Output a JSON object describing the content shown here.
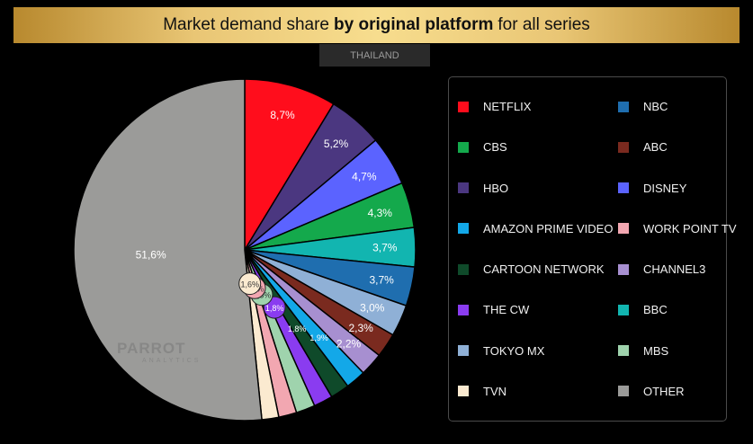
{
  "header": {
    "title_pre": "Market demand share",
    "title_bold": "by original platform",
    "title_post": "for all series",
    "subtitle": "THAILAND"
  },
  "watermark": {
    "brand": "PARROT",
    "sub": "ANALYTICS"
  },
  "chart_data": {
    "type": "pie",
    "title": "Market demand share by original platform for all series",
    "subtitle": "THAILAND",
    "legend_position": "right",
    "slices": [
      {
        "name": "NETFLIX",
        "value": 8.7,
        "label": "8,7%",
        "color": "#ff0d1c"
      },
      {
        "name": "HBO",
        "value": 5.2,
        "label": "5,2%",
        "color": "#4b3780"
      },
      {
        "name": "DISNEY",
        "value": 4.7,
        "label": "4,7%",
        "color": "#5b63ff"
      },
      {
        "name": "CBS",
        "value": 4.3,
        "label": "4,3%",
        "color": "#14a94c"
      },
      {
        "name": "BBC",
        "value": 3.7,
        "label": "3,7%",
        "color": "#12b5b0"
      },
      {
        "name": "NBC",
        "value": 3.7,
        "label": "3,7%",
        "color": "#1f6eaf"
      },
      {
        "name": "TOKYO MX",
        "value": 3.0,
        "label": "3,0%",
        "color": "#8fb0d6"
      },
      {
        "name": "ABC",
        "value": 2.3,
        "label": "2,3%",
        "color": "#7a2a1f"
      },
      {
        "name": "CHANNEL3",
        "value": 2.2,
        "label": "2,2%",
        "color": "#a78fd0"
      },
      {
        "name": "AMAZON PRIME VIDEO",
        "value": 1.9,
        "label": "1,9%",
        "color": "#13a8e8"
      },
      {
        "name": "CARTOON NETWORK",
        "value": 1.8,
        "label": "1,8%",
        "color": "#0f4a2a"
      },
      {
        "name": "THE CW",
        "value": 1.8,
        "label": "1,8%",
        "color": "#8a3cf0"
      },
      {
        "name": "MBS",
        "value": 1.8,
        "label": "1,8%",
        "color": "#9fd3ad"
      },
      {
        "name": "WORK POINT TV",
        "value": 1.7,
        "label": "1,7%",
        "color": "#f2a7b1"
      },
      {
        "name": "TVN",
        "value": 1.6,
        "label": "1,6%",
        "color": "#fbead0"
      },
      {
        "name": "OTHER",
        "value": 51.6,
        "label": "51,6%",
        "color": "#9b9b99"
      }
    ],
    "legend": [
      {
        "name": "NETFLIX",
        "color": "#ff0d1c"
      },
      {
        "name": "CBS",
        "color": "#14a94c"
      },
      {
        "name": "HBO",
        "color": "#4b3780"
      },
      {
        "name": "AMAZON PRIME VIDEO",
        "color": "#13a8e8"
      },
      {
        "name": "CARTOON NETWORK",
        "color": "#0f4a2a"
      },
      {
        "name": "THE CW",
        "color": "#8a3cf0"
      },
      {
        "name": "TOKYO MX",
        "color": "#8fb0d6"
      },
      {
        "name": "TVN",
        "color": "#fbead0"
      },
      {
        "name": "NBC",
        "color": "#1f6eaf"
      },
      {
        "name": "ABC",
        "color": "#7a2a1f"
      },
      {
        "name": "DISNEY",
        "color": "#5b63ff"
      },
      {
        "name": "WORK POINT TV",
        "color": "#f2a7b1"
      },
      {
        "name": "CHANNEL3",
        "color": "#a78fd0"
      },
      {
        "name": "BBC",
        "color": "#12b5b0"
      },
      {
        "name": "MBS",
        "color": "#9fd3ad"
      },
      {
        "name": "OTHER",
        "color": "#9b9b99"
      }
    ]
  }
}
